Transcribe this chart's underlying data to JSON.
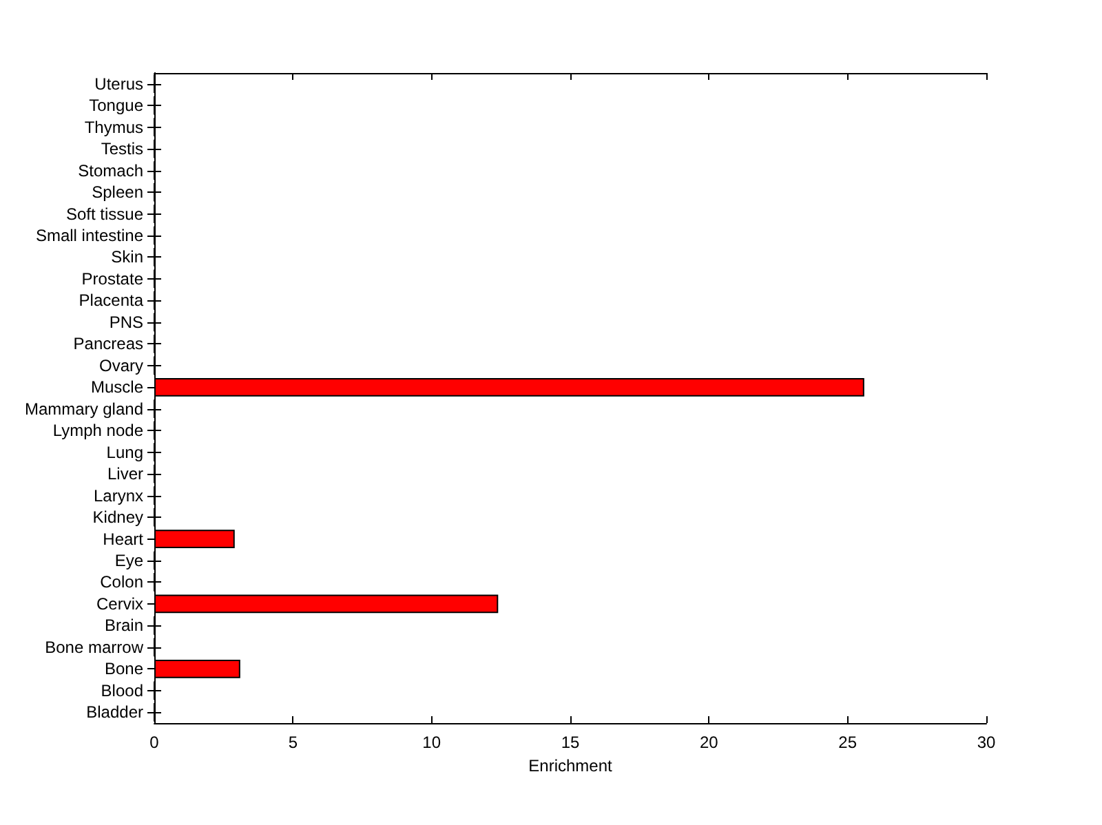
{
  "chart_data": {
    "type": "bar",
    "orientation": "horizontal",
    "xlabel": "Enrichment",
    "categories": [
      "Uterus",
      "Tongue",
      "Thymus",
      "Testis",
      "Stomach",
      "Spleen",
      "Soft tissue",
      "Small intestine",
      "Skin",
      "Prostate",
      "Placenta",
      "PNS",
      "Pancreas",
      "Ovary",
      "Muscle",
      "Mammary gland",
      "Lymph node",
      "Lung",
      "Liver",
      "Larynx",
      "Kidney",
      "Heart",
      "Eye",
      "Colon",
      "Cervix",
      "Brain",
      "Bone marrow",
      "Bone",
      "Blood",
      "Bladder"
    ],
    "values": [
      0,
      0,
      0,
      0,
      0,
      0,
      0,
      0,
      0,
      0,
      0,
      0,
      0,
      0,
      25.6,
      0,
      0,
      0,
      0,
      0,
      0,
      2.9,
      0,
      0,
      12.4,
      0,
      0,
      3.1,
      0,
      0
    ],
    "color": "#ff0000",
    "xlim": [
      0,
      30
    ],
    "xticks": [
      0,
      5,
      10,
      15,
      20,
      25,
      30
    ],
    "grid": false
  }
}
